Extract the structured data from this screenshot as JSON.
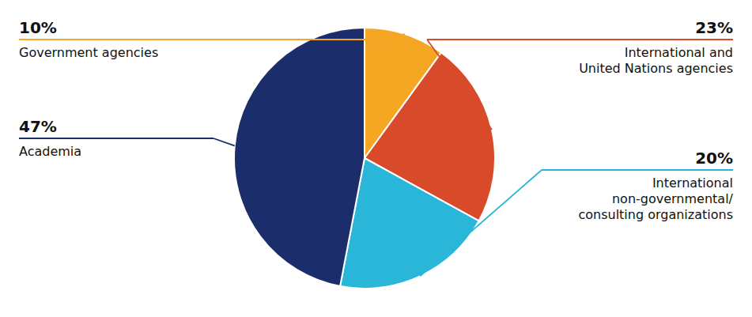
{
  "chart_data": {
    "type": "pie",
    "categories": [
      "Government agencies",
      "International and\nUnited Nations agencies",
      "International\nnon-governmental/\nconsulting organizations",
      "Academia"
    ],
    "values": [
      10,
      23,
      20,
      47
    ],
    "value_labels": [
      "10%",
      "23%",
      "20%",
      "47%"
    ],
    "colors": [
      "#F5A623",
      "#D94A2B",
      "#29B6D8",
      "#1B2D6B"
    ],
    "data_labels": true
  }
}
